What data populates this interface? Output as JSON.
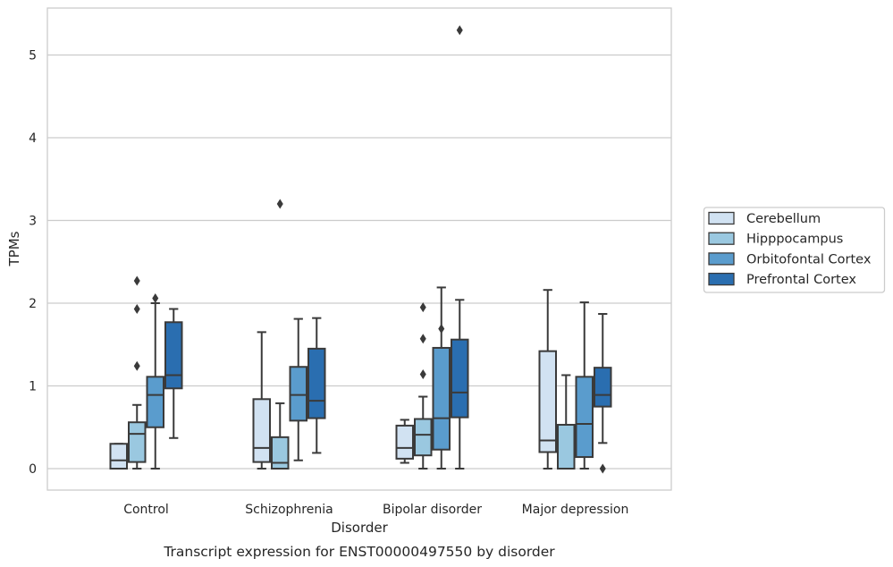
{
  "chart_data": {
    "type": "box",
    "title": "",
    "caption": "Transcript expression for ENST00000497550 by disorder",
    "xlabel": "Disorder",
    "ylabel": "TPMs",
    "ylim": [
      -0.25,
      5.6
    ],
    "yticks": [
      "0",
      "1",
      "2",
      "3",
      "4",
      "5"
    ],
    "grid": "horizontal",
    "legend_position": "right",
    "categories": [
      "Control",
      "Schizophrenia",
      "Bipolar disorder",
      "Major depression"
    ],
    "series": [
      {
        "name": "Cerebellum",
        "color": "#d1e2f2",
        "boxes": [
          {
            "whislo": 0.0,
            "q1": 0.0,
            "med": 0.1,
            "q3": 0.3,
            "whishi": 0.3,
            "fliers": []
          },
          {
            "whislo": 0.0,
            "q1": 0.08,
            "med": 0.25,
            "q3": 0.84,
            "whishi": 1.65,
            "fliers": []
          },
          {
            "whislo": 0.07,
            "q1": 0.12,
            "med": 0.25,
            "q3": 0.52,
            "whishi": 0.59,
            "fliers": []
          },
          {
            "whislo": 0.0,
            "q1": 0.2,
            "med": 0.34,
            "q3": 1.42,
            "whishi": 2.16,
            "fliers": []
          }
        ]
      },
      {
        "name": "Hipppocampus",
        "color": "#9ac8e0",
        "boxes": [
          {
            "whislo": 0.0,
            "q1": 0.08,
            "med": 0.42,
            "q3": 0.56,
            "whishi": 0.77,
            "fliers": [
              1.24,
              1.93,
              2.27
            ]
          },
          {
            "whislo": 0.0,
            "q1": 0.0,
            "med": 0.07,
            "q3": 0.38,
            "whishi": 0.79,
            "fliers": [
              3.2
            ]
          },
          {
            "whislo": 0.0,
            "q1": 0.16,
            "med": 0.41,
            "q3": 0.6,
            "whishi": 0.87,
            "fliers": [
              1.14,
              1.57,
              1.95
            ]
          },
          {
            "whislo": 0.0,
            "q1": 0.0,
            "med": 0.0,
            "q3": 0.53,
            "whishi": 1.13,
            "fliers": []
          }
        ]
      },
      {
        "name": "Orbitofontal Cortex",
        "color": "#5a9ccd",
        "boxes": [
          {
            "whislo": 0.0,
            "q1": 0.5,
            "med": 0.89,
            "q3": 1.11,
            "whishi": 2.0,
            "fliers": [
              2.06
            ]
          },
          {
            "whislo": 0.1,
            "q1": 0.58,
            "med": 0.89,
            "q3": 1.23,
            "whishi": 1.81,
            "fliers": []
          },
          {
            "whislo": 0.0,
            "q1": 0.23,
            "med": 0.61,
            "q3": 1.46,
            "whishi": 2.19,
            "fliers": [
              1.69
            ]
          },
          {
            "whislo": 0.0,
            "q1": 0.14,
            "med": 0.54,
            "q3": 1.11,
            "whishi": 2.01,
            "fliers": []
          }
        ]
      },
      {
        "name": "Prefrontal Cortex",
        "color": "#2a6eb0",
        "boxes": [
          {
            "whislo": 0.37,
            "q1": 0.97,
            "med": 1.13,
            "q3": 1.77,
            "whishi": 1.93,
            "fliers": []
          },
          {
            "whislo": 0.19,
            "q1": 0.61,
            "med": 0.82,
            "q3": 1.45,
            "whishi": 1.82,
            "fliers": []
          },
          {
            "whislo": 0.0,
            "q1": 0.62,
            "med": 0.92,
            "q3": 1.56,
            "whishi": 2.04,
            "fliers": [
              5.3
            ]
          },
          {
            "whislo": 0.31,
            "q1": 0.75,
            "med": 0.89,
            "q3": 1.22,
            "whishi": 1.87,
            "fliers": [
              0.0
            ]
          }
        ]
      }
    ]
  }
}
